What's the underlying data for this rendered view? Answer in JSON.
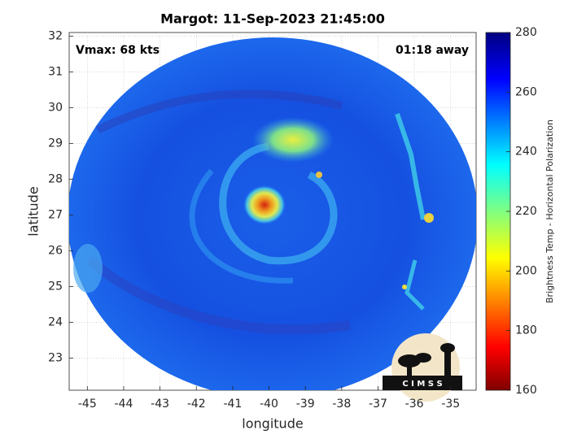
{
  "chart_data": {
    "type": "map",
    "title": "Margot: 11-Sep-2023 21:45:00",
    "annotations": [
      "Vmax: 68 kts",
      "01:18 away"
    ],
    "x_label": "longitude",
    "y_label": "latitude",
    "xlim": [
      -45.5,
      -34.3
    ],
    "ylim": [
      22.1,
      32.1
    ],
    "xticks": [
      -45,
      -44,
      -43,
      -42,
      -41,
      -40,
      -39,
      -38,
      -37,
      -36,
      -35
    ],
    "yticks": [
      23,
      24,
      25,
      26,
      27,
      28,
      29,
      30,
      31,
      32
    ],
    "grid": true,
    "colorbar": {
      "label": "Brightness Temp - Horizontal Polarization",
      "lim": [
        160,
        280
      ],
      "ticks": [
        160,
        180,
        200,
        220,
        240,
        260,
        280
      ]
    },
    "logo_text": "C I M S S"
  }
}
